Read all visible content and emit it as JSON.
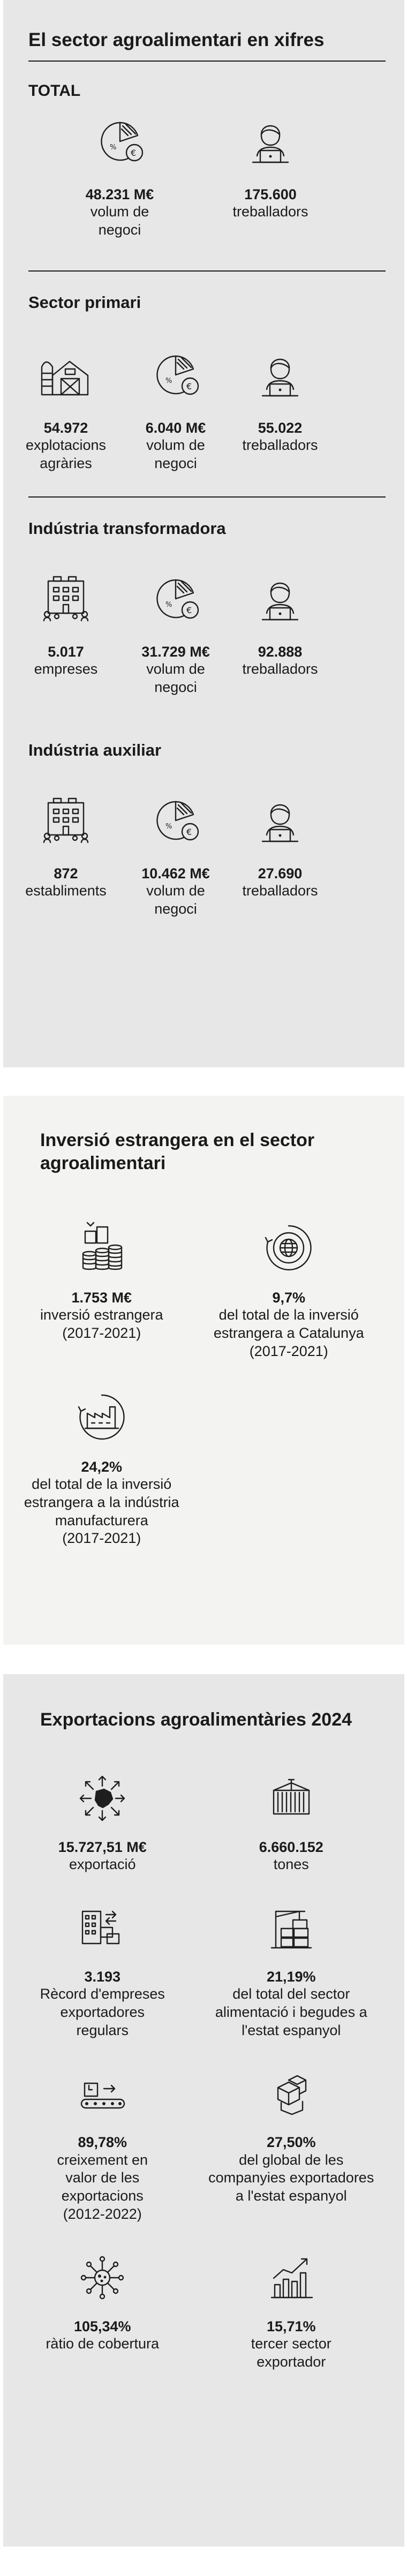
{
  "title": "El sector agroalimentari en xifres",
  "total": {
    "heading": "TOTAL",
    "items": [
      {
        "icon": "pie-chart-euro-icon",
        "value": "48.231 M€",
        "label": "volum de negoci"
      },
      {
        "icon": "worker-laptop-icon",
        "value": "175.600",
        "label": "treballadors"
      }
    ]
  },
  "primari": {
    "heading": "Sector primari",
    "items": [
      {
        "icon": "farm-barn-icon",
        "value": "54.972",
        "label1": "explotacions",
        "label2": "agràries"
      },
      {
        "icon": "pie-chart-euro-icon",
        "value": "6.040 M€",
        "label1": "volum de",
        "label2": "negoci"
      },
      {
        "icon": "worker-laptop-icon",
        "value": "55.022",
        "label1": "treballadors",
        "label2": ""
      }
    ]
  },
  "transformadora": {
    "heading": "Indústria transformadora",
    "items": [
      {
        "icon": "company-building-icon",
        "value": "5.017",
        "label1": "empreses",
        "label2": ""
      },
      {
        "icon": "pie-chart-euro-icon",
        "value": "31.729 M€",
        "label1": "volum de",
        "label2": "negoci"
      },
      {
        "icon": "worker-laptop-icon",
        "value": "92.888",
        "label1": "treballadors",
        "label2": ""
      }
    ]
  },
  "auxiliar": {
    "heading": "Indústria auxiliar",
    "items": [
      {
        "icon": "company-building-icon",
        "value": "872",
        "label1": "establiments",
        "label2": ""
      },
      {
        "icon": "pie-chart-euro-icon",
        "value": "10.462 M€",
        "label1": "volum de",
        "label2": "negoci"
      },
      {
        "icon": "worker-laptop-icon",
        "value": "27.690",
        "label1": "treballadors",
        "label2": ""
      }
    ]
  },
  "inversio": {
    "heading": "Inversió estrangera en el sector agroalimentari",
    "items": [
      {
        "icon": "coin-stacks-icon",
        "value": "1.753 M€",
        "lines": [
          "inversió estrangera",
          "(2017-2021)"
        ]
      },
      {
        "icon": "globe-cycle-icon",
        "value": "9,7%",
        "lines": [
          "del total de la inversió",
          "estrangera a Catalunya",
          "(2017-2021)"
        ]
      },
      {
        "icon": "factory-cycle-icon",
        "value": "24,2%",
        "lines": [
          "del total de la inversió",
          "estrangera a la indústria",
          "manufacturera",
          "(2017-2021)"
        ]
      }
    ]
  },
  "exportacions": {
    "heading": "Exportacions agroalimentàries 2024",
    "items": [
      {
        "icon": "catalonia-map-arrows-icon",
        "value": "15.727,51 M€",
        "lines": [
          "exportació"
        ]
      },
      {
        "icon": "shipping-container-icon",
        "value": "6.660.152",
        "lines": [
          "tones"
        ]
      },
      {
        "icon": "office-building-boxes-icon",
        "value": "3.193",
        "lines": [
          "Rècord d'empreses",
          "exportadores",
          "regulars"
        ]
      },
      {
        "icon": "port-crane-container-icon",
        "value": "21,19%",
        "lines": [
          "del total del sector",
          "alimentació i begudes a",
          "l'estat espanyol"
        ]
      },
      {
        "icon": "conveyor-belt-boxes-icon",
        "value": "89,78%",
        "lines": [
          "creixement en",
          "valor de les",
          "exportacions",
          "(2012-2022)"
        ]
      },
      {
        "icon": "stacked-boxes-icon",
        "value": "27,50%",
        "lines": [
          "del global de les",
          "companyies exportadores",
          "a l'estat espanyol"
        ]
      },
      {
        "icon": "coverage-network-icon",
        "value": "105,34%",
        "lines": [
          "ràtio de cobertura"
        ]
      },
      {
        "icon": "growth-bar-chart-icon",
        "value": "15,71%",
        "lines": [
          "tercer sector",
          "exportador"
        ]
      }
    ]
  }
}
